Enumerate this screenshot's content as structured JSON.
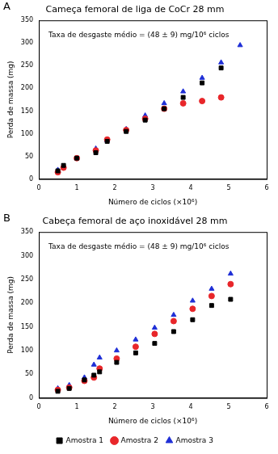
{
  "chart_data": [
    {
      "type": "scatter",
      "panel_label": "A",
      "title": "Cameça femoral de liga de CoCr 28 mm",
      "annotation": "Taxa de desgaste médio = (48 ± 9) mg/10⁶ ciclos",
      "x_label": "Número de ciclos (×10⁶)",
      "y_label": "Perda de massa (mg)",
      "xlim": [
        0,
        6
      ],
      "xticks": [
        0,
        1,
        2,
        3,
        4,
        5,
        6
      ],
      "ylim": [
        0,
        350
      ],
      "yticks": [
        0,
        50,
        100,
        150,
        200,
        250,
        300,
        350
      ],
      "grid": false,
      "series": [
        {
          "name": "Amostra 1",
          "color": "#000000",
          "marker": "square",
          "x": [
            0.5,
            0.65,
            1.0,
            1.5,
            1.8,
            2.3,
            2.8,
            3.3,
            3.8,
            4.3,
            4.8
          ],
          "values": [
            18,
            30,
            46,
            58,
            83,
            105,
            130,
            155,
            180,
            212,
            245
          ]
        },
        {
          "name": "Amostra 2",
          "color": "#e8262a",
          "marker": "circle",
          "x": [
            0.5,
            0.65,
            1.0,
            1.5,
            1.8,
            2.3,
            2.8,
            3.3,
            3.8,
            4.3,
            4.8
          ],
          "values": [
            15,
            25,
            46,
            63,
            87,
            108,
            133,
            155,
            167,
            172,
            180
          ]
        },
        {
          "name": "Amostra 3",
          "color": "#1f2fd6",
          "marker": "triangle",
          "x": [
            0.5,
            0.65,
            1.0,
            1.5,
            1.8,
            2.3,
            2.8,
            3.3,
            3.8,
            4.3,
            4.8,
            5.3
          ],
          "values": [
            20,
            27,
            46,
            67,
            85,
            110,
            140,
            167,
            193,
            223,
            257,
            295
          ]
        }
      ]
    },
    {
      "type": "scatter",
      "panel_label": "B",
      "title": "Cabeça femoral de aço inoxidável 28 mm",
      "annotation": "Taxa de desgaste médio = (48 ± 9) mg/10⁶ ciclos",
      "x_label": "Número de ciclos (×10⁶)",
      "y_label": "Perda de massa (mg)",
      "xlim": [
        0,
        6
      ],
      "xticks": [
        0,
        1,
        2,
        3,
        4,
        5,
        6
      ],
      "ylim": [
        0,
        350
      ],
      "yticks": [
        0,
        50,
        100,
        150,
        200,
        250,
        300,
        350
      ],
      "grid": false,
      "legend": "bottom",
      "series": [
        {
          "name": "Amostra 1",
          "color": "#000000",
          "marker": "square",
          "x": [
            0.5,
            0.8,
            1.2,
            1.45,
            1.6,
            2.05,
            2.55,
            3.05,
            3.55,
            4.05,
            4.55,
            5.05
          ],
          "values": [
            14,
            20,
            38,
            48,
            55,
            75,
            95,
            115,
            140,
            165,
            195,
            208
          ]
        },
        {
          "name": "Amostra 2",
          "color": "#e8262a",
          "marker": "circle",
          "x": [
            0.5,
            0.8,
            1.2,
            1.45,
            1.6,
            2.05,
            2.55,
            3.05,
            3.55,
            4.05,
            4.55,
            5.05
          ],
          "values": [
            17,
            22,
            36,
            43,
            62,
            83,
            108,
            135,
            162,
            188,
            215,
            240
          ]
        },
        {
          "name": "Amostra 3",
          "color": "#1f2fd6",
          "marker": "triangle",
          "x": [
            0.5,
            0.8,
            1.2,
            1.45,
            1.6,
            2.05,
            2.55,
            3.05,
            3.55,
            4.05,
            4.55,
            5.05
          ],
          "values": [
            20,
            27,
            43,
            70,
            85,
            100,
            123,
            148,
            175,
            205,
            230,
            262
          ]
        }
      ]
    }
  ]
}
